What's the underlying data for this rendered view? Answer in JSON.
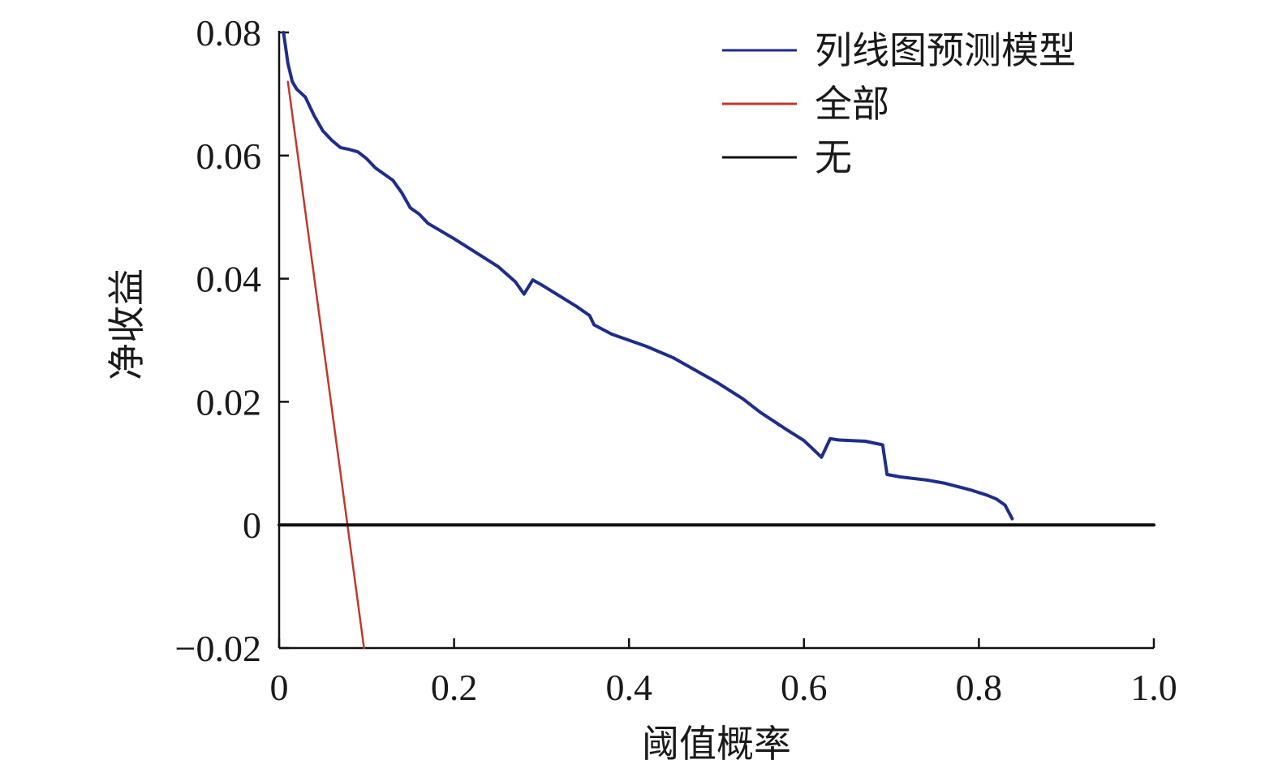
{
  "chart_data": {
    "type": "line",
    "title": "",
    "xlabel": "阈值概率",
    "ylabel": "净收益",
    "xlim": [
      0,
      1.0
    ],
    "ylim": [
      -0.02,
      0.08
    ],
    "x_ticks": [
      0,
      0.2,
      0.4,
      0.6,
      0.8,
      1.0
    ],
    "x_tick_labels": [
      "0",
      "0.2",
      "0.4",
      "0.6",
      "0.8",
      "1.0"
    ],
    "y_ticks": [
      -0.02,
      0,
      0.02,
      0.04,
      0.06,
      0.08
    ],
    "y_tick_labels": [
      "−0.02",
      "0",
      "0.02",
      "0.04",
      "0.06",
      "0.08"
    ],
    "grid": false,
    "legend_position": "top-right",
    "series": [
      {
        "name": "列线图预测模型",
        "color": "#1f2d8a",
        "points": [
          [
            0.005,
            0.08
          ],
          [
            0.01,
            0.075
          ],
          [
            0.015,
            0.072
          ],
          [
            0.02,
            0.0708
          ],
          [
            0.03,
            0.0695
          ],
          [
            0.04,
            0.0665
          ],
          [
            0.05,
            0.064
          ],
          [
            0.06,
            0.0625
          ],
          [
            0.07,
            0.0613
          ],
          [
            0.08,
            0.061
          ],
          [
            0.09,
            0.0606
          ],
          [
            0.1,
            0.0595
          ],
          [
            0.11,
            0.058
          ],
          [
            0.13,
            0.056
          ],
          [
            0.14,
            0.054
          ],
          [
            0.15,
            0.0515
          ],
          [
            0.16,
            0.0505
          ],
          [
            0.17,
            0.049
          ],
          [
            0.2,
            0.0465
          ],
          [
            0.25,
            0.042
          ],
          [
            0.27,
            0.0395
          ],
          [
            0.28,
            0.0375
          ],
          [
            0.29,
            0.0398
          ],
          [
            0.3,
            0.039
          ],
          [
            0.34,
            0.0355
          ],
          [
            0.355,
            0.034
          ],
          [
            0.36,
            0.0325
          ],
          [
            0.38,
            0.031
          ],
          [
            0.4,
            0.03
          ],
          [
            0.42,
            0.029
          ],
          [
            0.45,
            0.0272
          ],
          [
            0.5,
            0.0232
          ],
          [
            0.53,
            0.0205
          ],
          [
            0.55,
            0.0183
          ],
          [
            0.58,
            0.0155
          ],
          [
            0.6,
            0.0137
          ],
          [
            0.62,
            0.011
          ],
          [
            0.63,
            0.014
          ],
          [
            0.64,
            0.0138
          ],
          [
            0.67,
            0.0136
          ],
          [
            0.69,
            0.013
          ],
          [
            0.695,
            0.0082
          ],
          [
            0.71,
            0.0078
          ],
          [
            0.74,
            0.0073
          ],
          [
            0.76,
            0.0068
          ],
          [
            0.79,
            0.0057
          ],
          [
            0.81,
            0.0048
          ],
          [
            0.82,
            0.0042
          ],
          [
            0.83,
            0.0032
          ],
          [
            0.838,
            0.001
          ]
        ]
      },
      {
        "name": "全部",
        "color": "#c0392b",
        "points": [
          [
            0.01,
            0.072
          ],
          [
            0.097,
            -0.02
          ]
        ]
      },
      {
        "name": "无",
        "color": "#111111",
        "points": [
          [
            0,
            0
          ],
          [
            1.0,
            0
          ]
        ]
      }
    ]
  }
}
